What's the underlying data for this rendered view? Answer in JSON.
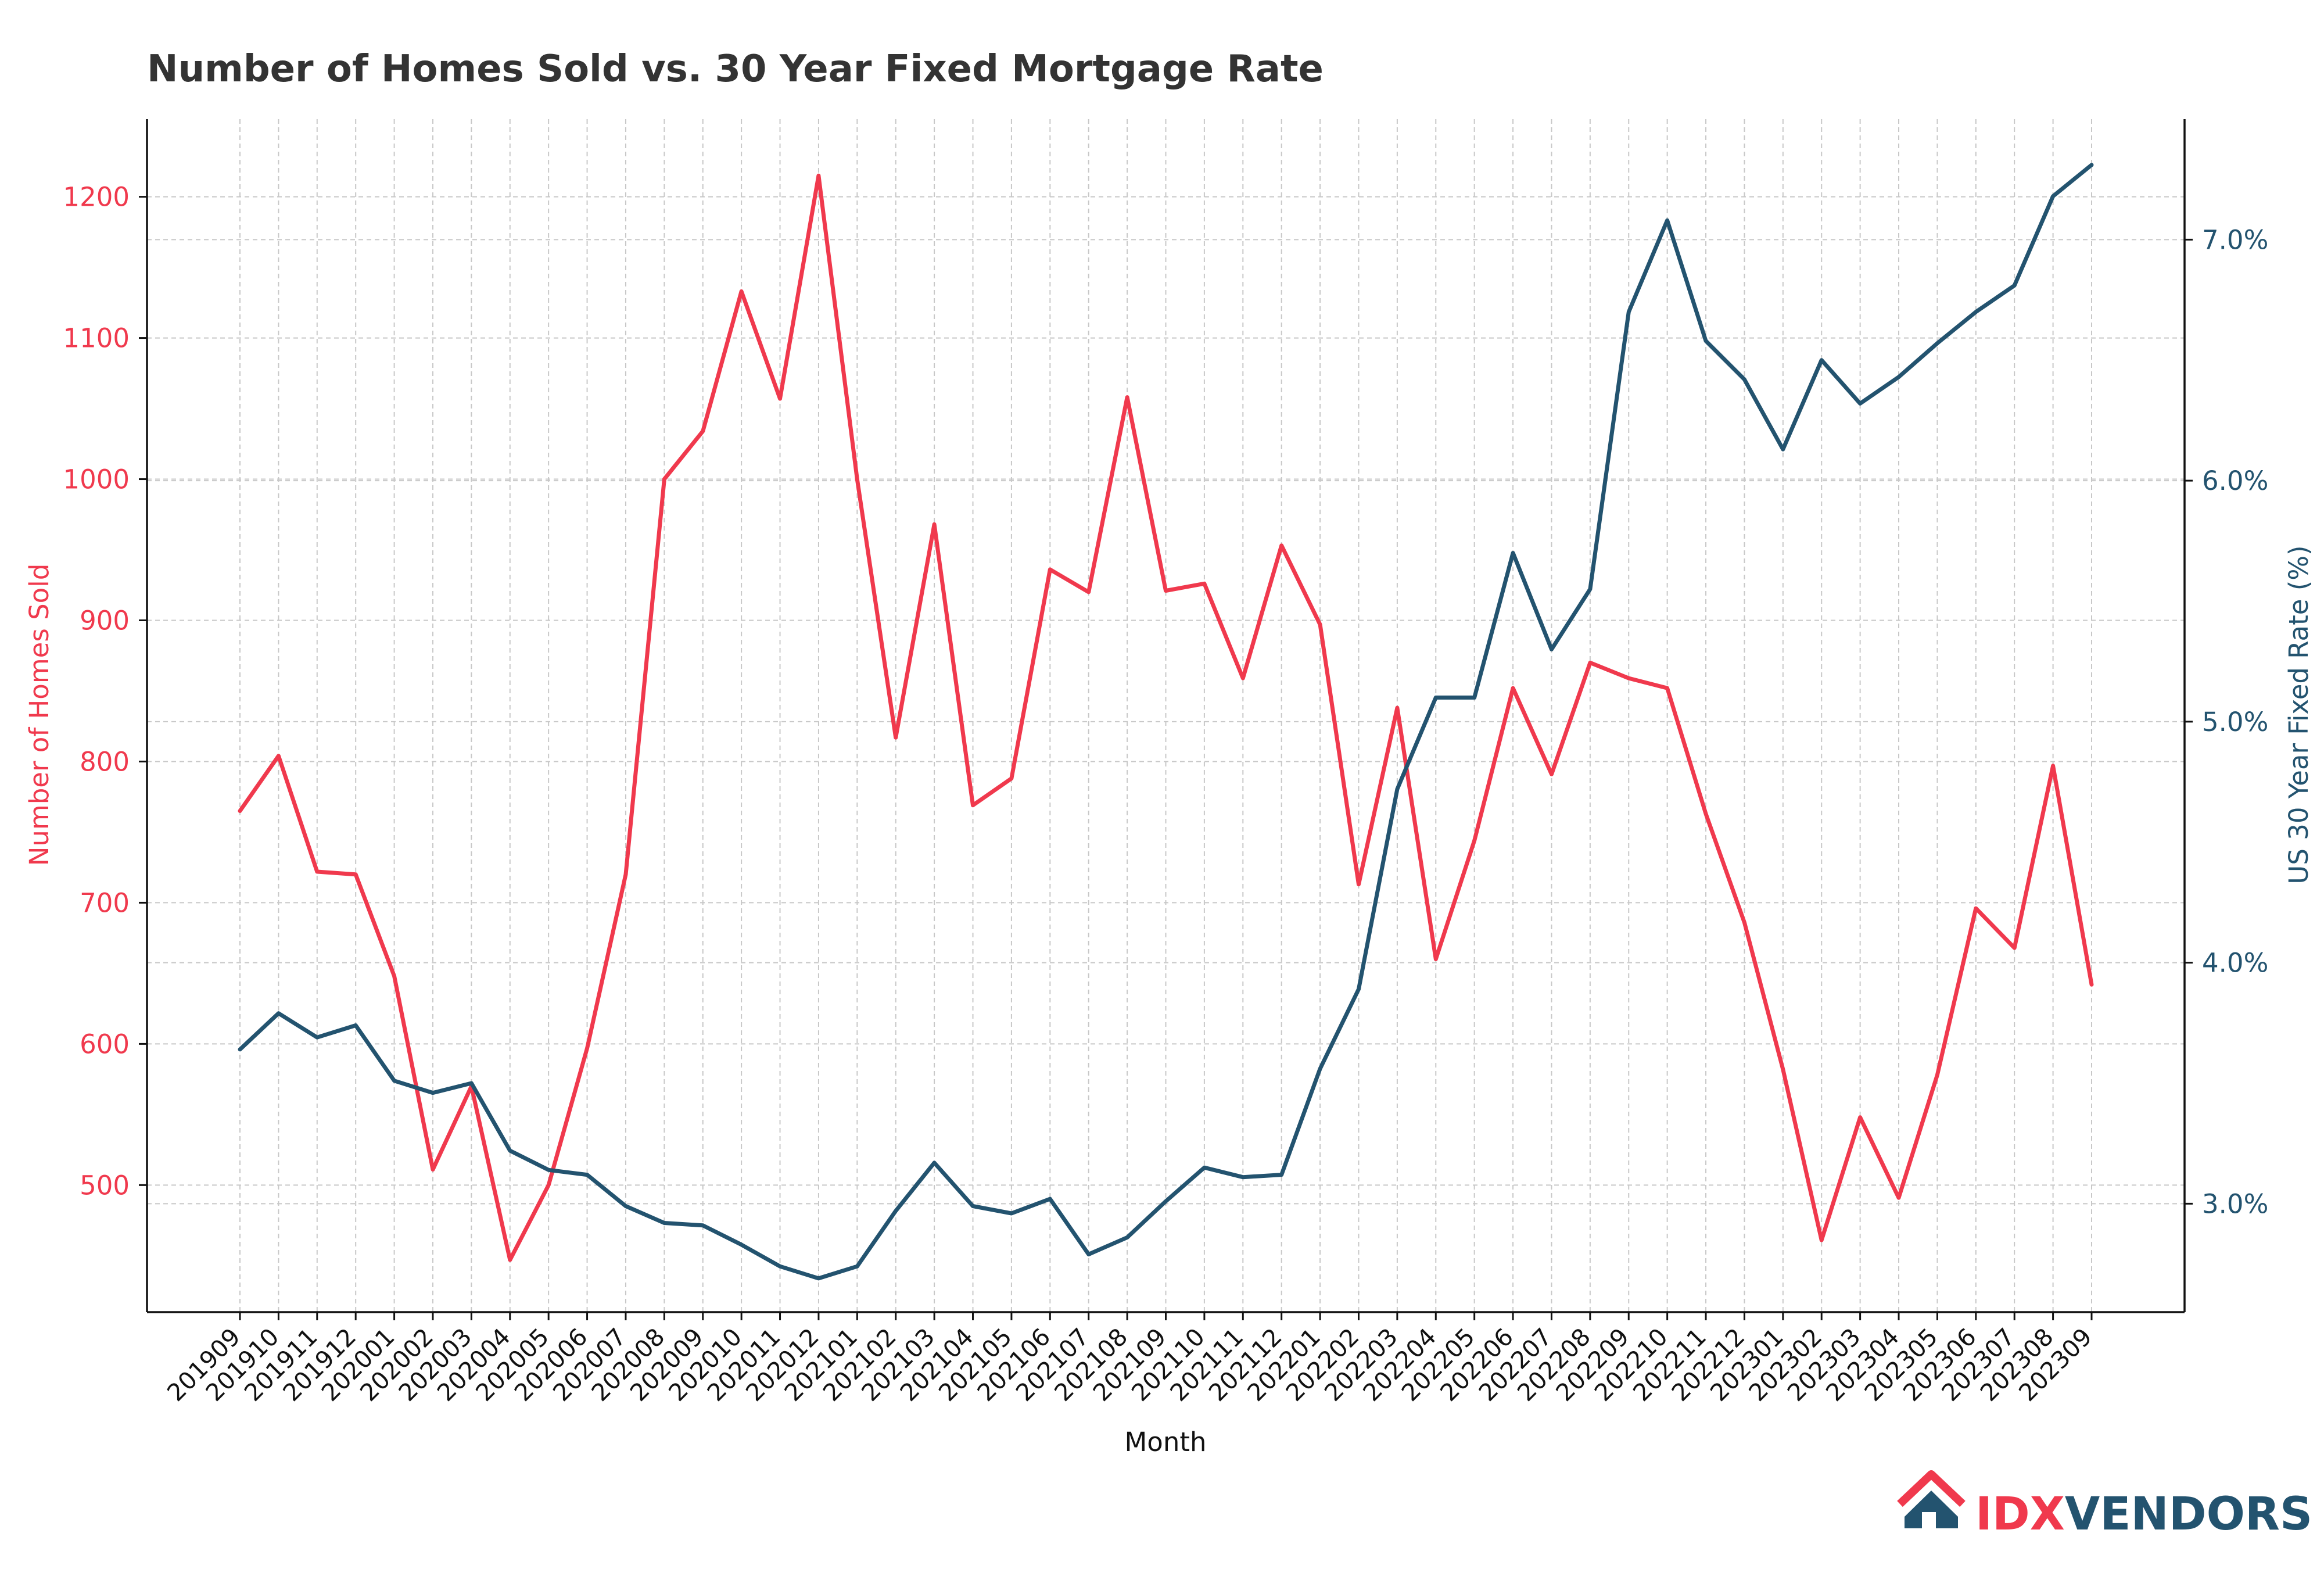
{
  "chart_data": {
    "type": "line",
    "title": "Number of Homes Sold vs. 30 Year Fixed Mortgage Rate",
    "xlabel": "Month",
    "ylabel": "Number of Homes Sold",
    "y2label": "US 30 Year Fixed Rate (%)",
    "categories": [
      "201909",
      "201910",
      "201911",
      "201912",
      "202001",
      "202002",
      "202003",
      "202004",
      "202005",
      "202006",
      "202007",
      "202008",
      "202009",
      "202010",
      "202011",
      "202012",
      "202101",
      "202102",
      "202103",
      "202104",
      "202105",
      "202106",
      "202107",
      "202108",
      "202109",
      "202110",
      "202111",
      "202112",
      "202201",
      "202202",
      "202203",
      "202204",
      "202205",
      "202206",
      "202207",
      "202208",
      "202209",
      "202210",
      "202211",
      "202212",
      "202301",
      "202302",
      "202303",
      "202304",
      "202305",
      "202306",
      "202307",
      "202308",
      "202309"
    ],
    "series": [
      {
        "name": "Number of Homes Sold",
        "axis": "left",
        "color": "#f0394d",
        "values": [
          765,
          804,
          722,
          720,
          648,
          511,
          570,
          447,
          500,
          597,
          720,
          1000,
          1034,
          1133,
          1057,
          1215,
          1000,
          817,
          968,
          769,
          788,
          936,
          920,
          1058,
          921,
          926,
          859,
          953,
          897,
          713,
          838,
          660,
          744,
          852,
          791,
          870,
          859,
          852,
          763,
          686,
          582,
          461,
          548,
          491,
          578,
          696,
          668,
          797,
          642
        ]
      },
      {
        "name": "US 30 Year Fixed Rate (%)",
        "axis": "right",
        "color": "#23536f",
        "values": [
          3.64,
          3.79,
          3.69,
          3.74,
          3.51,
          3.46,
          3.5,
          3.22,
          3.14,
          3.12,
          2.99,
          2.92,
          2.91,
          2.83,
          2.74,
          2.69,
          2.74,
          2.97,
          3.17,
          2.99,
          2.96,
          3.02,
          2.79,
          2.86,
          3.01,
          3.15,
          3.11,
          3.12,
          3.56,
          3.89,
          4.72,
          5.1,
          5.1,
          5.7,
          5.3,
          5.55,
          6.7,
          7.08,
          6.58,
          6.42,
          6.13,
          6.5,
          6.32,
          6.43,
          6.57,
          6.7,
          6.81,
          7.18,
          7.31
        ]
      }
    ],
    "ylim": [
      410,
      1255
    ],
    "y2lim": [
      2.55,
      7.5
    ],
    "yticks": [
      500,
      600,
      700,
      800,
      900,
      1000,
      1100,
      1200
    ],
    "y2ticks": [
      {
        "value": 3.0,
        "label": "3.0%"
      },
      {
        "value": 4.0,
        "label": "4.0%"
      },
      {
        "value": 5.0,
        "label": "5.0%"
      },
      {
        "value": 6.0,
        "label": "6.0%"
      },
      {
        "value": 7.0,
        "label": "7.0%"
      }
    ],
    "grid": true
  },
  "logo": {
    "text_idx": "IDX",
    "text_vendors": "VENDORS",
    "icon": "house-icon",
    "accent": "#f0394d",
    "brand": "#23536f"
  }
}
